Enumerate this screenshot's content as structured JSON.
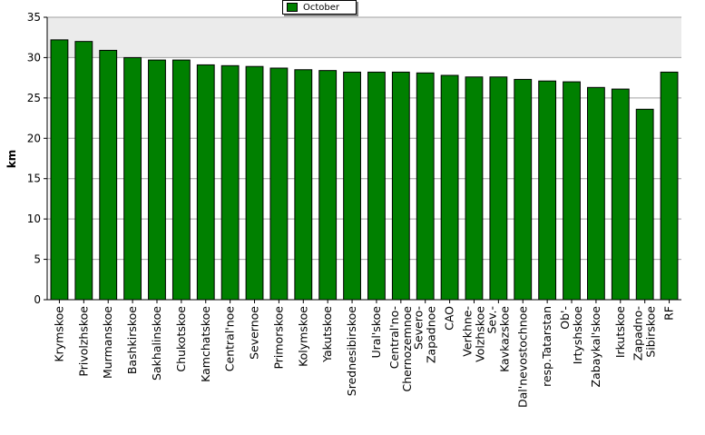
{
  "chart_data": {
    "type": "bar",
    "ylabel": "km",
    "ylim": [
      0,
      35
    ],
    "yticks": [
      0,
      5,
      10,
      15,
      20,
      25,
      30,
      35
    ],
    "legend_position": "top-center",
    "grid": true,
    "colors": {
      "bar": "#008000",
      "plot_background": "#ebebeb",
      "axis": "#000000"
    },
    "categories": [
      "Krymskoe",
      "Privolzhskoe",
      "Murmanskoe",
      "Bashkirskoe",
      "Sakhalinskoe",
      "Chukotskoe",
      "Kamchatskoe",
      "Central'noe",
      "Severnoe",
      "Primorskoe",
      "Kolymskoe",
      "Yakutskoe",
      "Srednesibirskoe",
      "Ural'skoe",
      "Central'no-Chernozemnoe",
      "Severo-Zapadnoe",
      "CAO",
      "Verkhne-Volzhskoe",
      "Sev.-Kavkazskoe",
      "Dal'nevostochnoe",
      "resp.Tatarstan",
      "Ob'-Irtyshskoe",
      "Zabaykal'skoe",
      "Irkutskoe",
      "Zapadno-Sibirskoe",
      "RF"
    ],
    "tick_lines": [
      [
        "Krymskoe"
      ],
      [
        "Privolzhskoe"
      ],
      [
        "Murmanskoe"
      ],
      [
        "Bashkirskoe"
      ],
      [
        "Sakhalinskoe"
      ],
      [
        "Chukotskoe"
      ],
      [
        "Kamchatskoe"
      ],
      [
        "Central'noe"
      ],
      [
        "Severnoe"
      ],
      [
        "Primorskoe"
      ],
      [
        "Kolymskoe"
      ],
      [
        "Yakutskoe"
      ],
      [
        "Srednesibirskoe"
      ],
      [
        "Ural'skoe"
      ],
      [
        "Central'no-",
        "Chernozemnoe"
      ],
      [
        "Severo-",
        "Zapadnoe"
      ],
      [
        "CAO"
      ],
      [
        "Verkhne-",
        "Volzhskoe"
      ],
      [
        "Sev.-",
        "Kavkazskoe"
      ],
      [
        "Dal'nevostochnoe"
      ],
      [
        "resp.Tatarstan"
      ],
      [
        "Ob'-",
        "Irtyshskoe"
      ],
      [
        "Zabaykal'skoe"
      ],
      [
        "Irkutskoe"
      ],
      [
        "Zapadno-",
        "Sibirskoe"
      ],
      [
        "RF"
      ]
    ],
    "series": [
      {
        "name": "October",
        "values": [
          32.2,
          32.0,
          30.9,
          30.0,
          29.7,
          29.7,
          29.1,
          29.0,
          28.9,
          28.7,
          28.5,
          28.4,
          28.2,
          28.2,
          28.2,
          28.1,
          27.8,
          27.6,
          27.6,
          27.3,
          27.1,
          27.0,
          26.3,
          26.1,
          23.6,
          28.2
        ]
      }
    ]
  }
}
